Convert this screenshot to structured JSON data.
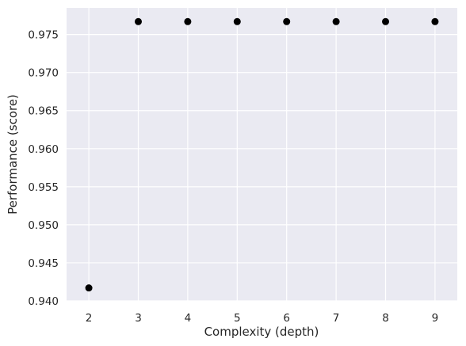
{
  "chart_data": {
    "type": "scatter",
    "title": "",
    "xlabel": "Complexity (depth)",
    "ylabel": "Performance (score)",
    "x": [
      2,
      3,
      4,
      5,
      6,
      7,
      8,
      9
    ],
    "y": [
      0.9417,
      0.9767,
      0.9767,
      0.9767,
      0.9767,
      0.9767,
      0.9767,
      0.9767
    ],
    "xlim": [
      1.55,
      9.45
    ],
    "ylim": [
      0.94,
      0.9785
    ],
    "xticks": [
      2,
      3,
      4,
      5,
      6,
      7,
      8,
      9
    ],
    "yticks": [
      0.94,
      0.945,
      0.95,
      0.955,
      0.96,
      0.965,
      0.97,
      0.975
    ],
    "ytick_labels": [
      "0.940",
      "0.945",
      "0.950",
      "0.955",
      "0.960",
      "0.965",
      "0.970",
      "0.975"
    ],
    "grid": true,
    "legend": "none",
    "colors": {
      "background": "#eaeaf2",
      "grid": "#ffffff",
      "marker": "#000000",
      "text": "#262626"
    }
  }
}
